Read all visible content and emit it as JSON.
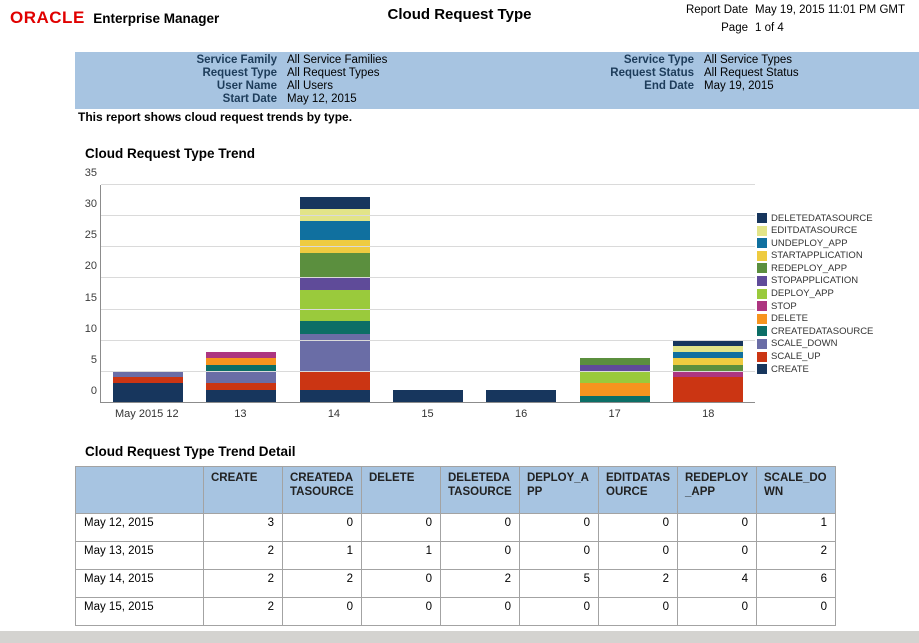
{
  "header": {
    "logo": "ORACLE",
    "logo_suffix": "Enterprise Manager",
    "title": "Cloud Request Type",
    "report_date_label": "Report Date",
    "report_date": "May 19, 2015 11:01 PM GMT",
    "page_label": "Page",
    "page": "1 of 4"
  },
  "parameters": {
    "left": [
      {
        "label": "Service Family",
        "value": "All Service Families"
      },
      {
        "label": "Request Type",
        "value": "All Request Types"
      },
      {
        "label": "User Name",
        "value": "All Users"
      },
      {
        "label": "Start Date",
        "value": "May 12, 2015"
      }
    ],
    "right": [
      {
        "label": "Service Type",
        "value": "All Service Types"
      },
      {
        "label": "Request Status",
        "value": "All Request Status"
      },
      {
        "label": "",
        "value": ""
      },
      {
        "label": "End Date",
        "value": "May 19, 2015"
      }
    ]
  },
  "description": "This report shows cloud request trends by type.",
  "chart_title": "Cloud Request Type Trend",
  "chart_data": {
    "type": "bar",
    "stacked": true,
    "title": "Cloud Request Type Trend",
    "xlabel": "",
    "ylabel": "",
    "ylim": [
      0,
      35
    ],
    "ytick_step": 5,
    "grid": true,
    "legend_position": "right",
    "legend_order": "reverse-of-stack",
    "categories": [
      "May 2015 12",
      "13",
      "14",
      "15",
      "16",
      "17",
      "18"
    ],
    "series": [
      {
        "name": "CREATE",
        "color": "#17365d",
        "values": [
          3,
          2,
          2,
          2,
          2,
          0,
          0
        ]
      },
      {
        "name": "SCALE_UP",
        "color": "#cb3513",
        "values": [
          1,
          1,
          3,
          0,
          0,
          0,
          4
        ]
      },
      {
        "name": "SCALE_DOWN",
        "color": "#6a6da6",
        "values": [
          1,
          2,
          6,
          0,
          0,
          0,
          0
        ]
      },
      {
        "name": "CREATEDATASOURCE",
        "color": "#0c6e66",
        "values": [
          0,
          1,
          2,
          0,
          0,
          1,
          0
        ]
      },
      {
        "name": "DELETE",
        "color": "#f7941e",
        "values": [
          0,
          1,
          0,
          0,
          0,
          2,
          0
        ]
      },
      {
        "name": "STOP",
        "color": "#ad3580",
        "values": [
          0,
          1,
          0,
          0,
          0,
          0,
          1
        ]
      },
      {
        "name": "DEPLOY_APP",
        "color": "#9aca3c",
        "values": [
          0,
          0,
          5,
          0,
          0,
          2,
          0
        ]
      },
      {
        "name": "STOPAPPLICATION",
        "color": "#5f4b99",
        "values": [
          0,
          0,
          2,
          0,
          0,
          1,
          0
        ]
      },
      {
        "name": "REDEPLOY_APP",
        "color": "#5b8f3e",
        "values": [
          0,
          0,
          4,
          0,
          0,
          1,
          1
        ]
      },
      {
        "name": "STARTAPPLICATION",
        "color": "#eecb40",
        "values": [
          0,
          0,
          2,
          0,
          0,
          0,
          1
        ]
      },
      {
        "name": "UNDEPLOY_APP",
        "color": "#10709f",
        "values": [
          0,
          0,
          3,
          0,
          0,
          0,
          1
        ]
      },
      {
        "name": "EDITDATASOURCE",
        "color": "#e2e488",
        "values": [
          0,
          0,
          2,
          0,
          0,
          0,
          1
        ]
      },
      {
        "name": "DELETEDATASOURCE",
        "color": "#17365d",
        "values": [
          0,
          0,
          2,
          0,
          0,
          0,
          1
        ]
      }
    ]
  },
  "table": {
    "title": "Cloud Request Type Trend Detail",
    "columns": [
      "",
      "CREATE",
      "CREATEDATASOURCE",
      "DELETE",
      "DELETEDATASOURCE",
      "DEPLOY_APP",
      "EDITDATASOURCE",
      "REDEPLOY_APP",
      "SCALE_DOWN"
    ],
    "rows": [
      {
        "date": "May 12, 2015",
        "values": [
          3,
          0,
          0,
          0,
          0,
          0,
          0,
          1
        ]
      },
      {
        "date": "May 13, 2015",
        "values": [
          2,
          1,
          1,
          0,
          0,
          0,
          0,
          2
        ]
      },
      {
        "date": "May 14, 2015",
        "values": [
          2,
          2,
          0,
          2,
          5,
          2,
          4,
          6
        ]
      },
      {
        "date": "May 15, 2015",
        "values": [
          2,
          0,
          0,
          0,
          0,
          0,
          0,
          0
        ]
      }
    ]
  }
}
